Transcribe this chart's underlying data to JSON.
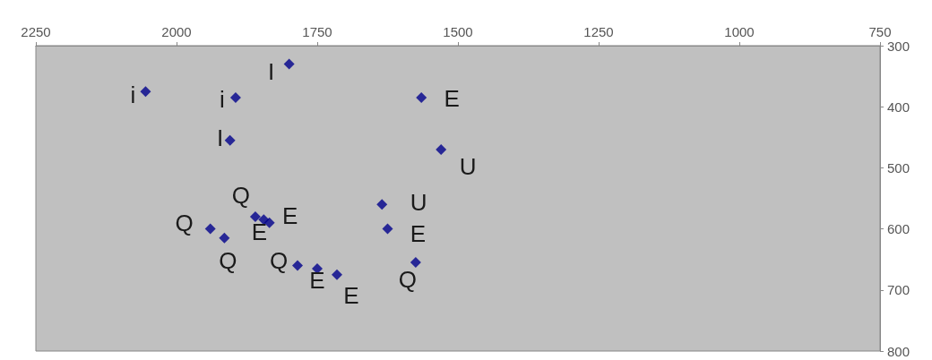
{
  "chart_data": {
    "type": "scatter",
    "x": [
      2055,
      1895,
      1800,
      1905,
      1565,
      1530,
      1635,
      1625,
      1575,
      1940,
      1915,
      1860,
      1845,
      1835,
      1785,
      1750,
      1715
    ],
    "series": [
      {
        "color": "#00008b",
        "values": [
          375,
          385,
          330,
          455,
          385,
          470,
          560,
          600,
          655,
          600,
          615,
          580,
          585,
          590,
          660,
          665,
          675
        ]
      }
    ],
    "marker": "diamond",
    "grid": false,
    "xlim": [
      2250,
      750
    ],
    "xticks": [
      2250,
      2000,
      1750,
      1500,
      1250,
      1000,
      750
    ],
    "ylim": [
      800,
      300
    ],
    "yticks": [
      300,
      400,
      500,
      600,
      700,
      800
    ],
    "annotations": [
      {
        "text": "i",
        "x": 2055,
        "y": 375
      },
      {
        "text": "i",
        "x": 1895,
        "y": 385
      },
      {
        "text": "I",
        "x": 1800,
        "y": 330
      },
      {
        "text": "I",
        "x": 1905,
        "y": 455
      },
      {
        "text": "E",
        "x": 1565,
        "y": 385
      },
      {
        "text": "U",
        "x": 1530,
        "y": 470
      },
      {
        "text": "U",
        "x": 1635,
        "y": 560
      },
      {
        "text": "E",
        "x": 1625,
        "y": 600
      },
      {
        "text": "Q",
        "x": 1575,
        "y": 655
      },
      {
        "text": "Q",
        "x": 1940,
        "y": 600
      },
      {
        "text": "Q",
        "x": 1915,
        "y": 615
      },
      {
        "text": "Q",
        "x": 1860,
        "y": 580
      },
      {
        "text": "E",
        "x": 1845,
        "y": 585
      },
      {
        "text": "E",
        "x": 1835,
        "y": 590
      },
      {
        "text": "Q",
        "x": 1785,
        "y": 660
      },
      {
        "text": "E",
        "x": 1750,
        "y": 665
      },
      {
        "text": "E",
        "x": 1715,
        "y": 675
      }
    ]
  }
}
